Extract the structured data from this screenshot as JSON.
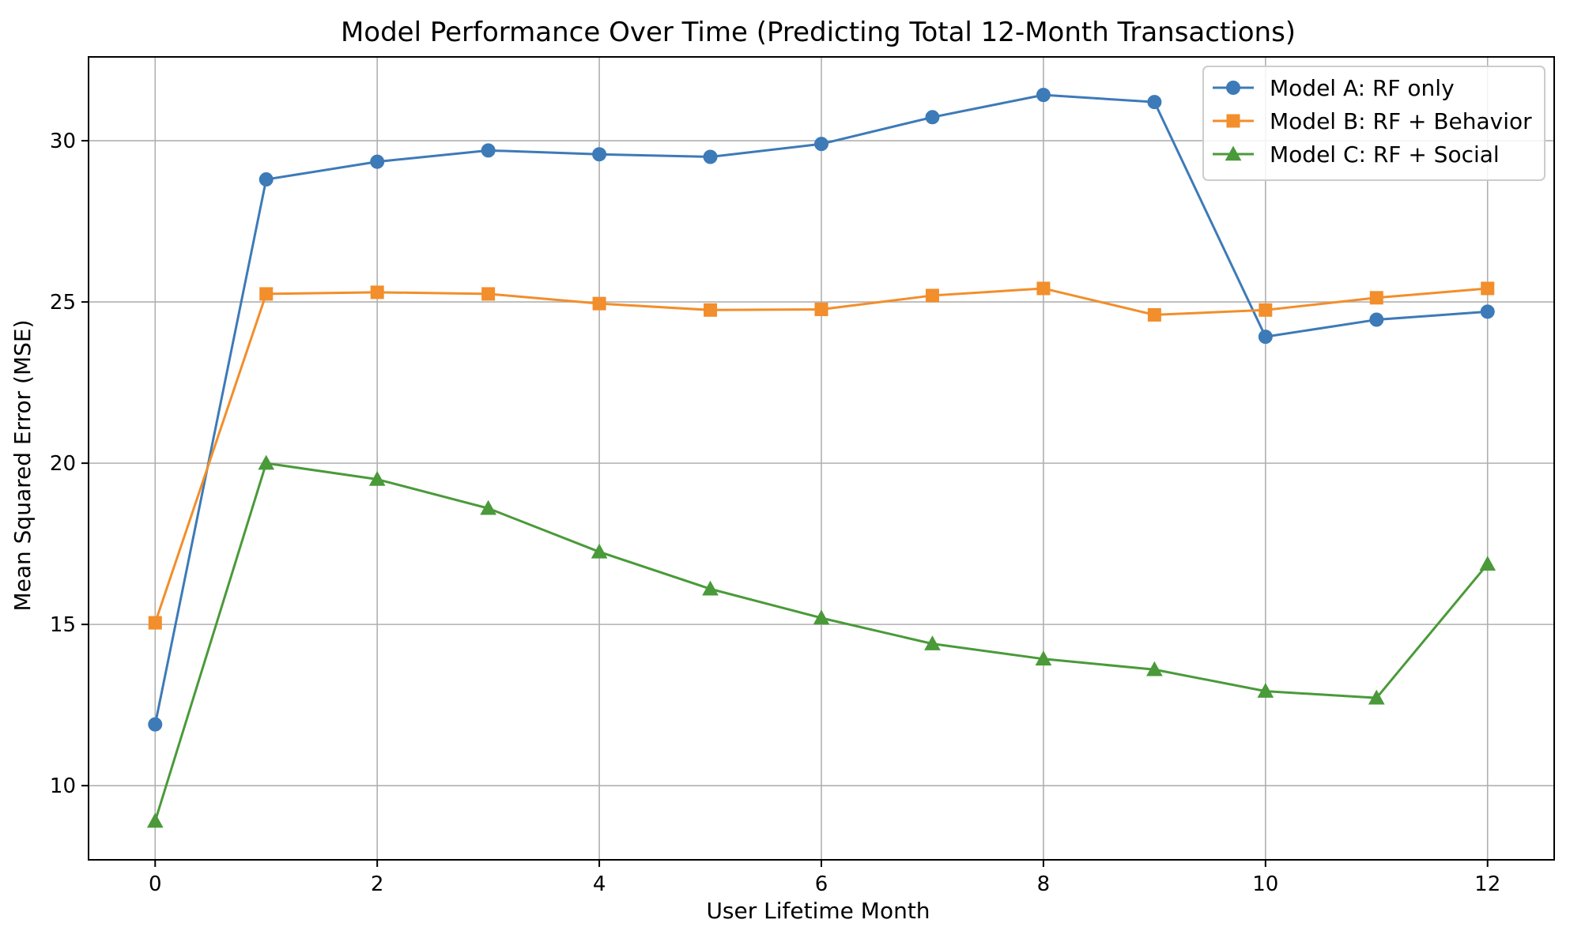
{
  "chart_data": {
    "type": "line",
    "title": "Model Performance Over Time (Predicting Total 12-Month Transactions)",
    "xlabel": "User Lifetime Month",
    "ylabel": "Mean Squared Error (MSE)",
    "x": [
      0,
      1,
      2,
      3,
      4,
      5,
      6,
      7,
      8,
      9,
      10,
      11,
      12
    ],
    "xlim": [
      -0.6,
      12.6
    ],
    "ylim": [
      7.7,
      32.6
    ],
    "xticks": [
      0,
      2,
      4,
      6,
      8,
      10,
      12
    ],
    "yticks": [
      10,
      15,
      20,
      25,
      30
    ],
    "grid": true,
    "legend_position": "top-right",
    "series": [
      {
        "name": "Model A: RF only",
        "color": "#3d7ab8",
        "marker": "circle",
        "values": [
          11.9,
          28.8,
          29.35,
          29.7,
          29.58,
          29.5,
          29.9,
          30.73,
          31.42,
          31.2,
          23.92,
          24.45,
          24.7
        ]
      },
      {
        "name": "Model B: RF + Behavior",
        "color": "#f28e2b",
        "marker": "square",
        "values": [
          15.05,
          25.25,
          25.3,
          25.25,
          24.95,
          24.75,
          24.77,
          25.2,
          25.42,
          24.6,
          24.75,
          25.13,
          25.42
        ]
      },
      {
        "name": "Model C: RF + Social",
        "color": "#4a9a3a",
        "marker": "triangle",
        "values": [
          8.9,
          20.0,
          19.5,
          18.6,
          17.25,
          16.1,
          15.2,
          14.4,
          13.93,
          13.6,
          12.93,
          12.72,
          16.87
        ]
      }
    ]
  }
}
